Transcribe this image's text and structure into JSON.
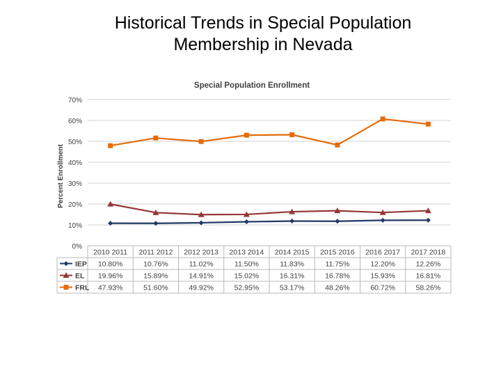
{
  "slide": {
    "title_line1": "Historical Trends in Special Population",
    "title_line2": "Membership in Nevada"
  },
  "chart_data": {
    "type": "line",
    "title": "Special Population Enrollment",
    "ylabel": "Percent Enrollment",
    "ylim": [
      0,
      70
    ],
    "yticks": [
      "0%",
      "10%",
      "20%",
      "30%",
      "40%",
      "50%",
      "60%",
      "70%"
    ],
    "grid": true,
    "legend": "data-table",
    "categories": [
      "2010 2011",
      "2011 2012",
      "2012 2013",
      "2013 2014",
      "2014 2015",
      "2015 2016",
      "2016 2017",
      "2017 2018"
    ],
    "series": [
      {
        "name": "IEP",
        "color": "#1f3864",
        "marker": "diamond",
        "values": [
          10.8,
          10.76,
          11.02,
          11.5,
          11.83,
          11.75,
          12.2,
          12.26
        ],
        "labels": [
          "10.80%",
          "10.76%",
          "11.02%",
          "11.50%",
          "11.83%",
          "11.75%",
          "12.20%",
          "12.26%"
        ]
      },
      {
        "name": "EL",
        "color": "#953735",
        "marker": "triangle",
        "values": [
          19.96,
          15.89,
          14.91,
          15.02,
          16.31,
          16.78,
          15.93,
          16.81
        ],
        "labels": [
          "19.96%",
          "15.89%",
          "14.91%",
          "15.02%",
          "16.31%",
          "16.78%",
          "15.93%",
          "16.81%"
        ]
      },
      {
        "name": "FRL",
        "color": "#e46c0a",
        "marker": "square",
        "values": [
          47.93,
          51.6,
          49.92,
          52.95,
          53.17,
          48.26,
          60.72,
          58.26
        ],
        "labels": [
          "47.93%",
          "51.60%",
          "49.92%",
          "52.95%",
          "53.17%",
          "48.26%",
          "60.72%",
          "58.26%"
        ]
      }
    ]
  }
}
